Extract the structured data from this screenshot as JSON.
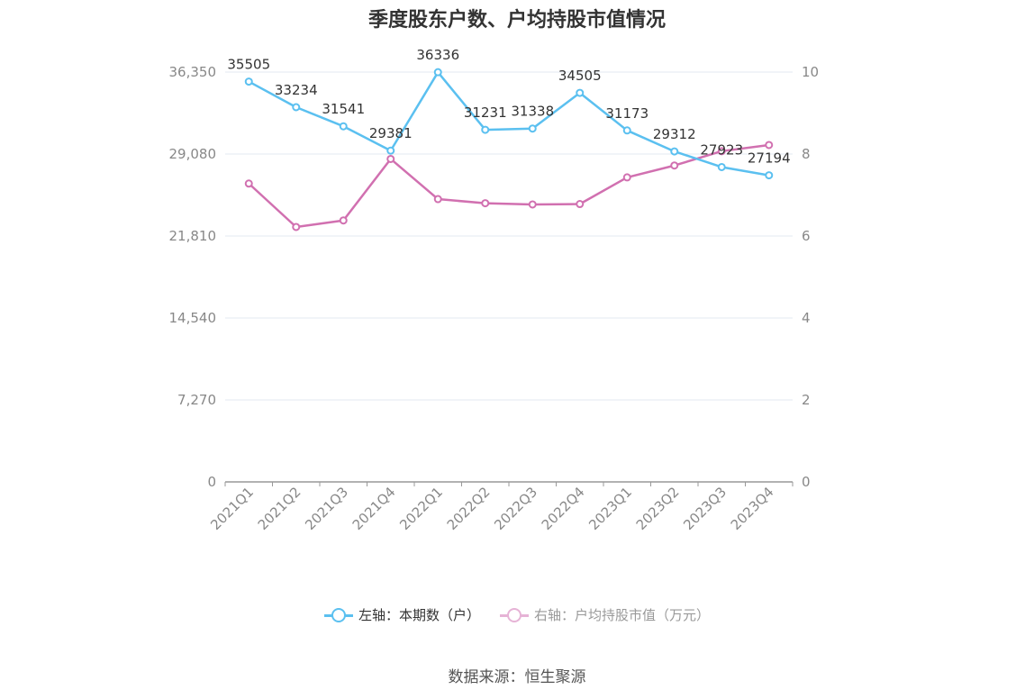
{
  "title": "季度股东户数、户均持股市值情况",
  "source": "数据来源：恒生聚源",
  "chart_data": {
    "type": "line",
    "categories": [
      "2021Q1",
      "2021Q2",
      "2021Q3",
      "2021Q4",
      "2022Q1",
      "2022Q2",
      "2022Q3",
      "2022Q4",
      "2023Q1",
      "2023Q2",
      "2023Q3",
      "2023Q4"
    ],
    "left_axis": {
      "min": 0,
      "max": 36350,
      "ticks": [
        "0",
        "7,270",
        "14,540",
        "21,810",
        "29,080",
        "36,350"
      ]
    },
    "right_axis": {
      "min": 0,
      "max": 10,
      "ticks": [
        "0",
        "2",
        "4",
        "6",
        "8",
        "10"
      ]
    },
    "grid": true,
    "legend_position": "bottom",
    "series": [
      {
        "name": "左轴：本期数（户）",
        "axis": "left",
        "color": "#5bc0f0",
        "show_labels": true,
        "values": [
          35505,
          33234,
          31541,
          29381,
          36336,
          31231,
          31338,
          34505,
          31173,
          29312,
          27923,
          27194
        ]
      },
      {
        "name": "右轴：户均持股市值（万元）",
        "axis": "right",
        "color": "#d170b0",
        "show_labels": false,
        "values": [
          7.28,
          6.22,
          6.38,
          7.88,
          6.9,
          6.8,
          6.77,
          6.78,
          7.43,
          7.72,
          8.07,
          8.22
        ]
      }
    ]
  }
}
